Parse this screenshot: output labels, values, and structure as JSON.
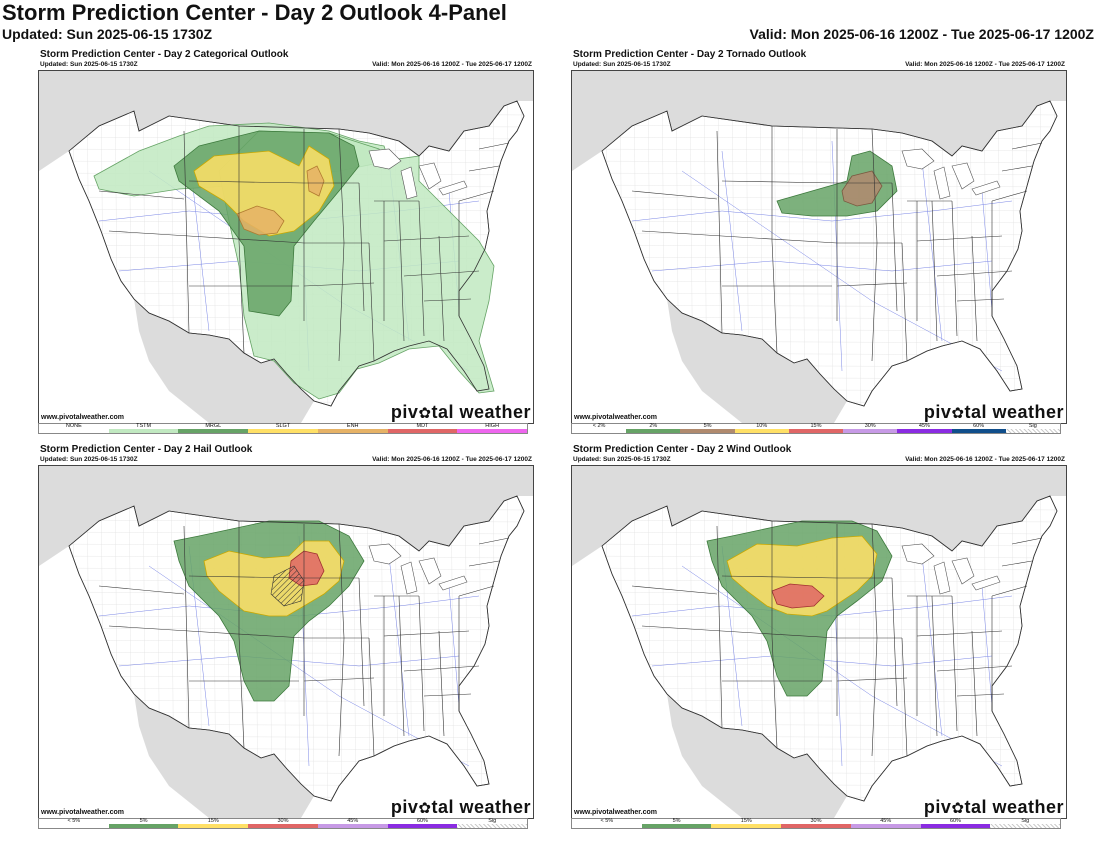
{
  "header": {
    "title": "Storm Prediction Center - Day 2 Outlook 4-Panel",
    "updated": "Updated: Sun 2025-06-15 1730Z",
    "valid": "Valid: Mon 2025-06-16 1200Z - Tue 2025-06-17 1200Z"
  },
  "panels": [
    {
      "title": "Storm Prediction Center - Day 2 Categorical Outlook",
      "updated": "Updated: Sun 2025-06-15 1730Z",
      "valid": "Valid: Mon 2025-06-16 1200Z - Tue 2025-06-17 1200Z",
      "credit": "www.pivotalweather.com",
      "legend": [
        {
          "label": "NONE",
          "color": "#ffffff"
        },
        {
          "label": "TSTM",
          "color": "#c1e9c1"
        },
        {
          "label": "MRGL",
          "color": "#66a366"
        },
        {
          "label": "SLGT",
          "color": "#ffe066"
        },
        {
          "label": "ENH",
          "color": "#e6b266"
        },
        {
          "label": "MDT",
          "color": "#e06666"
        },
        {
          "label": "HIGH",
          "color": "#ee66ee"
        }
      ]
    },
    {
      "title": "Storm Prediction Center - Day 2 Tornado Outlook",
      "updated": "Updated: Sun 2025-06-15 1730Z",
      "valid": "Valid: Mon 2025-06-16 1200Z - Tue 2025-06-17 1200Z",
      "credit": "www.pivotalweather.com",
      "legend": [
        {
          "label": "< 2%",
          "color": "#ffffff"
        },
        {
          "label": "2%",
          "color": "#66a366"
        },
        {
          "label": "5%",
          "color": "#b08a6e"
        },
        {
          "label": "10%",
          "color": "#ffe066"
        },
        {
          "label": "15%",
          "color": "#e06666"
        },
        {
          "label": "30%",
          "color": "#c79ae6"
        },
        {
          "label": "45%",
          "color": "#8a2be2"
        },
        {
          "label": "60%",
          "color": "#104e8b"
        },
        {
          "label": "Sig",
          "color": "hatch"
        }
      ]
    },
    {
      "title": "Storm Prediction Center - Day 2 Hail Outlook",
      "updated": "Updated: Sun 2025-06-15 1730Z",
      "valid": "Valid: Mon 2025-06-16 1200Z - Tue 2025-06-17 1200Z",
      "credit": "www.pivotalweather.com",
      "legend": [
        {
          "label": "< 5%",
          "color": "#ffffff"
        },
        {
          "label": "5%",
          "color": "#66a366"
        },
        {
          "label": "15%",
          "color": "#ffe066"
        },
        {
          "label": "30%",
          "color": "#e06666"
        },
        {
          "label": "45%",
          "color": "#c79ae6"
        },
        {
          "label": "60%",
          "color": "#8a2be2"
        },
        {
          "label": "Sig",
          "color": "hatch"
        }
      ]
    },
    {
      "title": "Storm Prediction Center - Day 2 Wind Outlook",
      "updated": "Updated: Sun 2025-06-15 1730Z",
      "valid": "Valid: Mon 2025-06-16 1200Z - Tue 2025-06-17 1200Z",
      "credit": "www.pivotalweather.com",
      "legend": [
        {
          "label": "< 5%",
          "color": "#ffffff"
        },
        {
          "label": "5%",
          "color": "#66a366"
        },
        {
          "label": "15%",
          "color": "#ffe066"
        },
        {
          "label": "30%",
          "color": "#e06666"
        },
        {
          "label": "45%",
          "color": "#c79ae6"
        },
        {
          "label": "60%",
          "color": "#8a2be2"
        },
        {
          "label": "Sig",
          "color": "hatch"
        }
      ]
    }
  ],
  "logo": {
    "prefix": "piv",
    "suffix": "tal weather"
  }
}
